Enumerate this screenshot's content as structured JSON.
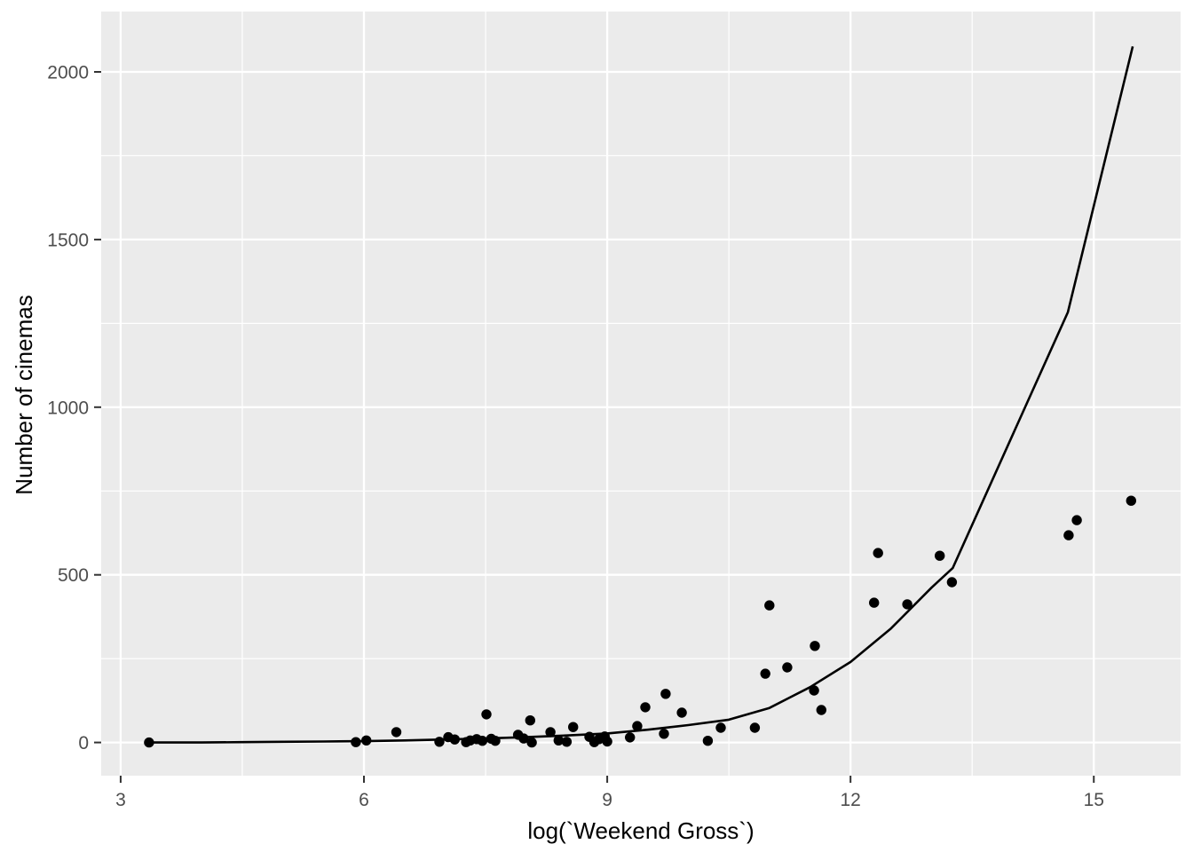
{
  "chart_data": {
    "type": "scatter",
    "title": "",
    "xlabel": "log(`Weekend Gross`)",
    "ylabel": "Number of cinemas",
    "legend": false,
    "grid": true,
    "theme": "ggplot-grey",
    "xlim": [
      2.76,
      16.07
    ],
    "ylim": [
      -99,
      2180
    ],
    "x_ticks": [
      3,
      6,
      9,
      12,
      15
    ],
    "y_ticks": [
      0,
      500,
      1000,
      1500,
      2000
    ],
    "x_minor": [
      4.5,
      7.5,
      10.5,
      13.5
    ],
    "y_minor": [
      250,
      750,
      1250,
      1750
    ],
    "colors": {
      "panel_bg": "#EBEBEB",
      "grid": "#FFFFFF",
      "point": "#000000",
      "line": "#000000",
      "tick_mark": "#333333",
      "axis_text": "#4D4D4D",
      "axis_title": "#000000"
    },
    "series": [
      {
        "name": "data points",
        "type": "scatter",
        "points": [
          [
            3.35,
            0
          ],
          [
            5.9,
            1
          ],
          [
            6.03,
            6
          ],
          [
            6.4,
            31
          ],
          [
            6.93,
            2
          ],
          [
            7.04,
            16
          ],
          [
            7.12,
            9
          ],
          [
            7.26,
            1
          ],
          [
            7.31,
            6
          ],
          [
            7.39,
            10
          ],
          [
            7.46,
            5
          ],
          [
            7.51,
            84
          ],
          [
            7.57,
            11
          ],
          [
            7.62,
            5
          ],
          [
            7.9,
            23
          ],
          [
            7.97,
            12
          ],
          [
            8.05,
            66
          ],
          [
            8.07,
            0
          ],
          [
            8.3,
            31
          ],
          [
            8.4,
            6
          ],
          [
            8.5,
            2
          ],
          [
            8.58,
            46
          ],
          [
            8.78,
            17
          ],
          [
            8.84,
            1
          ],
          [
            8.9,
            10
          ],
          [
            8.97,
            18
          ],
          [
            9.0,
            3
          ],
          [
            9.28,
            15
          ],
          [
            9.37,
            49
          ],
          [
            9.47,
            105
          ],
          [
            9.7,
            26
          ],
          [
            9.72,
            145
          ],
          [
            9.92,
            89
          ],
          [
            10.24,
            5
          ],
          [
            10.4,
            44
          ],
          [
            10.82,
            44
          ],
          [
            10.95,
            205
          ],
          [
            11.0,
            409
          ],
          [
            11.22,
            224
          ],
          [
            11.55,
            155
          ],
          [
            11.56,
            288
          ],
          [
            11.64,
            97
          ],
          [
            12.29,
            417
          ],
          [
            12.34,
            565
          ],
          [
            12.7,
            412
          ],
          [
            13.1,
            557
          ],
          [
            13.25,
            478
          ],
          [
            14.69,
            618
          ],
          [
            14.79,
            663
          ],
          [
            15.46,
            721
          ]
        ]
      },
      {
        "name": "smooth fit line",
        "type": "line",
        "points": [
          [
            3.35,
            0
          ],
          [
            4.0,
            0
          ],
          [
            4.5,
            1
          ],
          [
            5.0,
            2
          ],
          [
            5.5,
            3
          ],
          [
            6.0,
            4
          ],
          [
            6.5,
            6
          ],
          [
            7.0,
            9
          ],
          [
            7.5,
            12
          ],
          [
            8.0,
            16
          ],
          [
            8.5,
            21
          ],
          [
            9.0,
            27
          ],
          [
            9.5,
            38
          ],
          [
            10.0,
            52
          ],
          [
            10.5,
            68
          ],
          [
            11.0,
            103
          ],
          [
            11.5,
            165
          ],
          [
            12.0,
            240
          ],
          [
            12.5,
            340
          ],
          [
            13.0,
            462
          ],
          [
            13.26,
            520
          ],
          [
            14.0,
            918
          ],
          [
            14.68,
            1283
          ],
          [
            15.48,
            2076
          ]
        ]
      }
    ]
  }
}
